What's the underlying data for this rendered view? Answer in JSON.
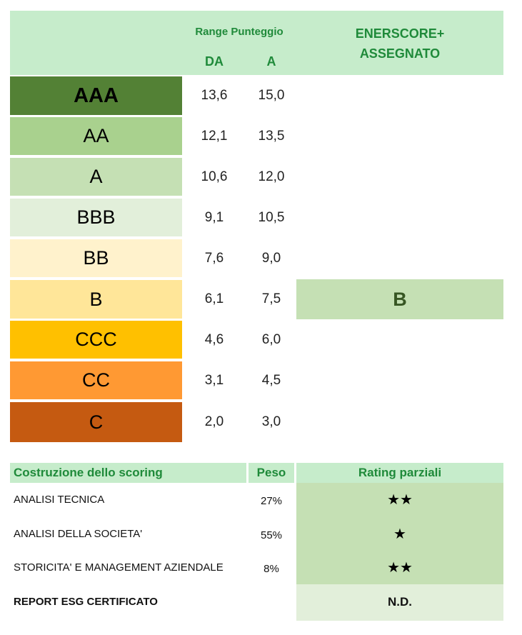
{
  "header": {
    "range_title": "Range Punteggio",
    "col_da": "DA",
    "col_a": "A",
    "enerscore_line1": "ENERSCORE+",
    "enerscore_line2": "ASSEGNATO"
  },
  "ratings": [
    {
      "grade": "AAA",
      "da": "13,6",
      "a": "15,0",
      "color": "#538135",
      "bold": true
    },
    {
      "grade": "AA",
      "da": "12,1",
      "a": "13,5",
      "color": "#a9d18e"
    },
    {
      "grade": "A",
      "da": "10,6",
      "a": "12,0",
      "color": "#c5e0b4"
    },
    {
      "grade": "BBB",
      "da": "9,1",
      "a": "10,5",
      "color": "#e2efda"
    },
    {
      "grade": "BB",
      "da": "7,6",
      "a": "9,0",
      "color": "#fff2cc"
    },
    {
      "grade": "B",
      "da": "6,1",
      "a": "7,5",
      "color": "#ffe699"
    },
    {
      "grade": "CCC",
      "da": "4,6",
      "a": "6,0",
      "color": "#ffc000"
    },
    {
      "grade": "CC",
      "da": "3,1",
      "a": "4,5",
      "color": "#ff9933"
    },
    {
      "grade": "C",
      "da": "2,0",
      "a": "3,0",
      "color": "#c55a11"
    }
  ],
  "assigned": {
    "grade": "B",
    "bg": "#c5e0b4",
    "color": "#375623"
  },
  "scoring": {
    "col_label": "Costruzione dello scoring",
    "col_weight": "Peso",
    "col_rating": "Rating parziali",
    "rows": [
      {
        "label": "ANALISI TECNICA",
        "weight": "27%",
        "rating": "★★"
      },
      {
        "label": "ANALISI DELLA SOCIETA'",
        "weight": "55%",
        "rating": "★"
      },
      {
        "label": "STORICITA' E MANAGEMENT AZIENDALE",
        "weight": "8%",
        "rating": "★★"
      }
    ],
    "report": {
      "label": "REPORT ESG CERTIFICATO",
      "rating": "N.D."
    }
  }
}
